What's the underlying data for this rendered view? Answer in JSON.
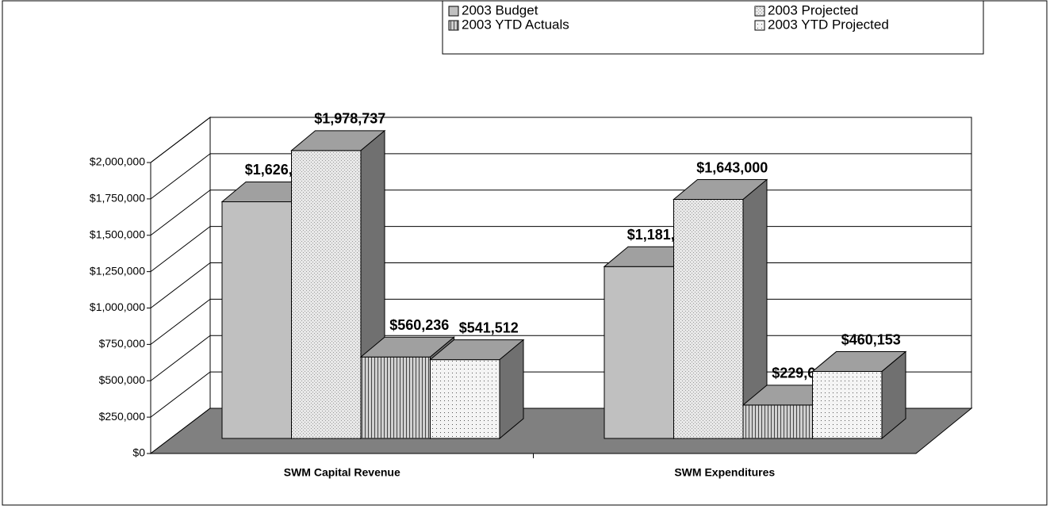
{
  "chart_data": {
    "type": "bar3d",
    "categories": [
      "SWM Capital Revenue",
      "SWM Expenditures"
    ],
    "series": [
      {
        "name": "2003 Budget",
        "color": "#c0c0c0",
        "values": [
          1626937,
          1181463
        ],
        "value_labels": [
          "$1,626,937",
          "$1,181,463"
        ]
      },
      {
        "name": "2003 Projected",
        "color": "#e8e8e8",
        "values": [
          1978737,
          1643000
        ],
        "value_labels": [
          "$1,978,737",
          "$1,643,000"
        ]
      },
      {
        "name": "2003 YTD Actuals",
        "color": "#d0d0d0",
        "values": [
          560236,
          229699
        ],
        "value_labels": [
          "$560,236",
          "$229,699"
        ]
      },
      {
        "name": "2003 YTD Projected",
        "color": "#f4f4f4",
        "values": [
          541512,
          460153
        ],
        "value_labels": [
          "$541,512",
          "$460,153"
        ]
      }
    ],
    "ylim": [
      0,
      2000000
    ],
    "yticks": [
      {
        "value": 0,
        "label": "$0"
      },
      {
        "value": 250000,
        "label": "$250,000"
      },
      {
        "value": 500000,
        "label": "$500,000"
      },
      {
        "value": 750000,
        "label": "$750,000"
      },
      {
        "value": 1000000,
        "label": "$1,000,000"
      },
      {
        "value": 1250000,
        "label": "$1,250,000"
      },
      {
        "value": 1500000,
        "label": "$1,500,000"
      },
      {
        "value": 1750000,
        "label": "$1,750,000"
      },
      {
        "value": 2000000,
        "label": "$2,000,000"
      }
    ],
    "grid": true
  }
}
